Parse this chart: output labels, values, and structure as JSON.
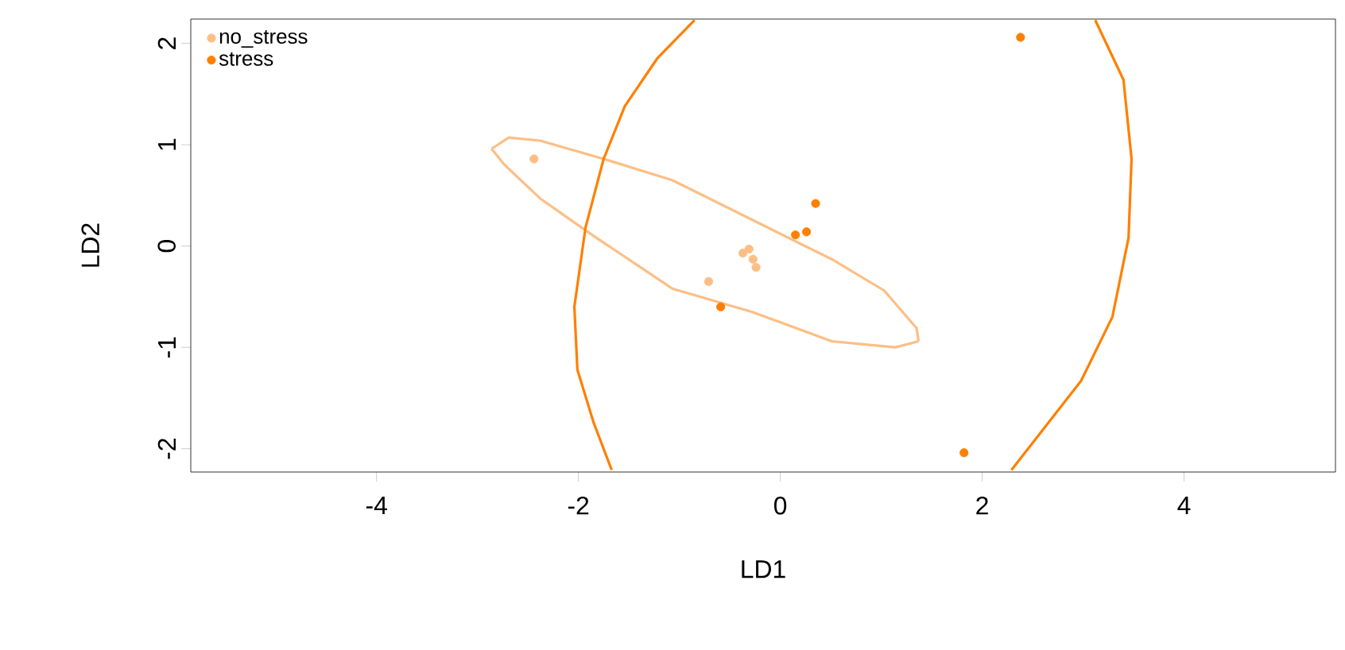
{
  "chart_data": {
    "type": "scatter",
    "xlabel": "LD1",
    "ylabel": "LD2",
    "xlim": [
      -5.84,
      5.5
    ],
    "ylim": [
      -2.23,
      2.24
    ],
    "xticks": [
      -4,
      -2,
      0,
      2,
      4
    ],
    "yticks": [
      -2,
      -1,
      0,
      1,
      2
    ],
    "grid": false,
    "legend": "top left",
    "series": [
      {
        "name": "no_stress",
        "marker": "circle",
        "color": "#fdbe85",
        "x": [
          -2.44,
          -0.31,
          -0.37,
          -0.27,
          -0.24,
          -0.71
        ],
        "values": [
          0.86,
          -0.03,
          -0.07,
          -0.13,
          -0.21,
          -0.35
        ]
      },
      {
        "name": "stress",
        "marker": "circle",
        "color": "#ff7f00",
        "x": [
          -0.59,
          0.15,
          0.26,
          0.35,
          2.38,
          1.82
        ],
        "values": [
          -0.6,
          0.11,
          0.14,
          0.42,
          2.06,
          -2.04
        ]
      },
      {
        "type": "line",
        "marker": "none",
        "color": "#fdbe85",
        "x": [
          -2.86,
          -2.69,
          -2.38,
          -1.75,
          -1.07,
          -0.28,
          0.51,
          1.03,
          1.35,
          1.37,
          null,
          1.37,
          1.14,
          0.51,
          -0.28,
          -1.07,
          -1.85,
          -2.38,
          -2.74,
          -2.86
        ],
        "values": [
          0.96,
          1.07,
          1.04,
          0.86,
          0.65,
          0.26,
          -0.13,
          -0.44,
          -0.81,
          -0.94,
          null,
          -0.94,
          -1.0,
          -0.94,
          -0.65,
          -0.42,
          0.1,
          0.47,
          0.81,
          0.96
        ]
      },
      {
        "type": "line",
        "marker": "none",
        "color": "#ff7f00",
        "x": [
          -0.85,
          -1.22,
          -1.54,
          -1.75,
          -1.93,
          -2.04,
          -2.01,
          -1.85,
          -1.67,
          null,
          3.12,
          3.4,
          3.48,
          3.45,
          3.29,
          2.98,
          2.29
        ],
        "values": [
          2.23,
          1.85,
          1.38,
          0.86,
          0.18,
          -0.6,
          -1.22,
          -1.74,
          -2.21,
          null,
          2.23,
          1.64,
          0.86,
          0.08,
          -0.7,
          -1.33,
          -2.21
        ]
      }
    ]
  }
}
